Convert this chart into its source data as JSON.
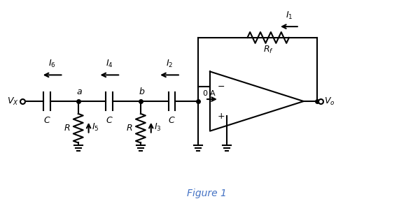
{
  "title": "Figure 1",
  "title_color": "#4472C4",
  "background": "#ffffff",
  "line_color": "#000000",
  "lw": 1.5,
  "figsize": [
    5.9,
    2.95
  ],
  "dpi": 100
}
